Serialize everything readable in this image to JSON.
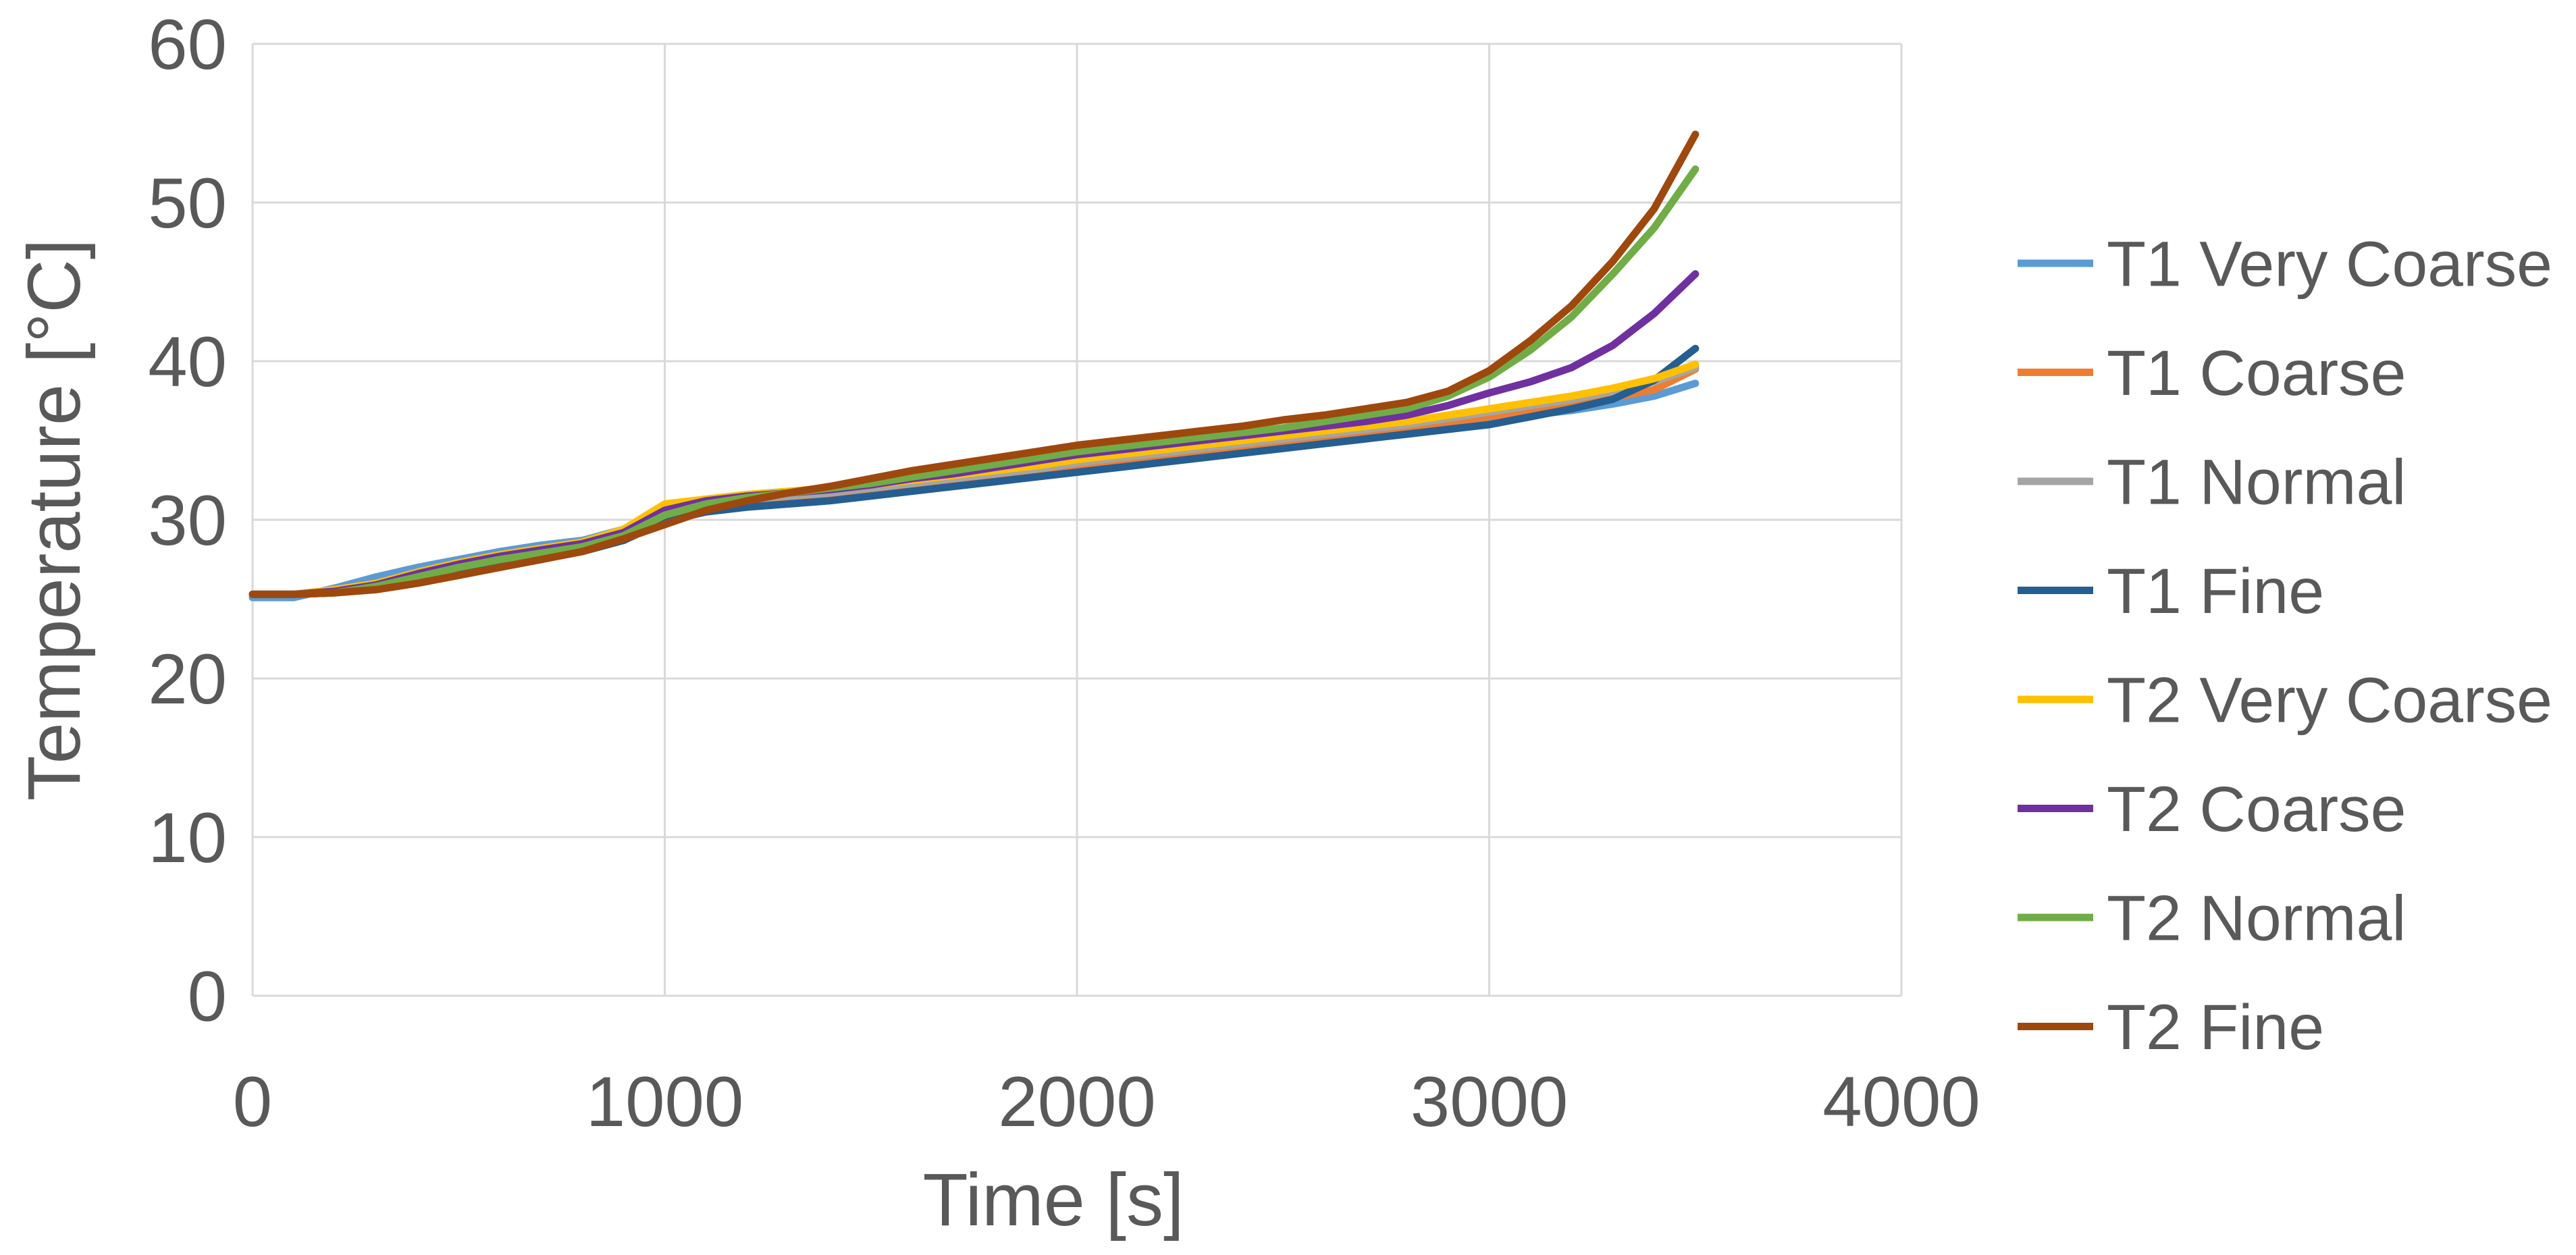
{
  "chart_data": {
    "type": "line",
    "title": "",
    "xlabel": "Time [s]",
    "ylabel": "Temperature [°C]",
    "xlim": [
      0,
      4000
    ],
    "ylim": [
      0,
      60
    ],
    "x_ticks": [
      0,
      1000,
      2000,
      3000,
      4000
    ],
    "y_ticks": [
      0,
      10,
      20,
      30,
      40,
      50,
      60
    ],
    "grid": true,
    "legend_position": "right",
    "x": [
      0,
      100,
      200,
      300,
      400,
      500,
      600,
      700,
      800,
      900,
      1000,
      1100,
      1200,
      1300,
      1400,
      1500,
      1600,
      1700,
      1800,
      1900,
      2000,
      2100,
      2200,
      2300,
      2400,
      2500,
      2600,
      2700,
      2800,
      2900,
      3000,
      3100,
      3200,
      3300,
      3400,
      3500
    ],
    "series": [
      {
        "name": "T1 Very Coarse",
        "color": "#5B9BD5",
        "values": [
          25.1,
          25.1,
          25.7,
          26.4,
          27.0,
          27.5,
          28.0,
          28.4,
          28.7,
          29.4,
          30.7,
          31.1,
          31.4,
          31.6,
          31.8,
          32.0,
          32.2,
          32.5,
          32.8,
          33.1,
          33.4,
          33.7,
          34.0,
          34.3,
          34.5,
          34.8,
          35.1,
          35.4,
          35.7,
          36.0,
          36.3,
          36.6,
          36.9,
          37.3,
          37.8,
          38.6
        ]
      },
      {
        "name": "T1 Coarse",
        "color": "#ED7D31",
        "values": [
          25.3,
          25.3,
          25.4,
          25.8,
          26.4,
          26.9,
          27.4,
          27.8,
          28.2,
          28.9,
          30.2,
          30.8,
          31.1,
          31.3,
          31.5,
          31.8,
          32.1,
          32.4,
          32.7,
          33.0,
          33.3,
          33.6,
          33.9,
          34.2,
          34.5,
          34.8,
          35.1,
          35.4,
          35.8,
          36.1,
          36.5,
          36.9,
          37.3,
          37.7,
          38.2,
          39.5
        ]
      },
      {
        "name": "T1 Normal",
        "color": "#A5A5A5",
        "values": [
          25.3,
          25.3,
          25.5,
          25.9,
          26.5,
          27.0,
          27.5,
          27.9,
          28.3,
          29.0,
          30.4,
          31.0,
          31.3,
          31.5,
          31.7,
          32.0,
          32.3,
          32.6,
          32.9,
          33.2,
          33.6,
          33.9,
          34.2,
          34.5,
          34.8,
          35.1,
          35.4,
          35.7,
          36.0,
          36.4,
          36.8,
          37.2,
          37.6,
          38.1,
          38.7,
          39.6
        ]
      },
      {
        "name": "T1 Fine",
        "color": "#255E91",
        "values": [
          25.3,
          25.3,
          25.4,
          25.7,
          26.2,
          26.7,
          27.2,
          27.6,
          28.0,
          28.7,
          29.9,
          30.5,
          30.8,
          31.0,
          31.2,
          31.5,
          31.8,
          32.1,
          32.4,
          32.7,
          33.0,
          33.3,
          33.6,
          33.9,
          34.2,
          34.5,
          34.8,
          35.1,
          35.4,
          35.7,
          36.0,
          36.5,
          37.0,
          37.6,
          38.8,
          40.8
        ]
      },
      {
        "name": "T2 Very Coarse",
        "color": "#FFC000",
        "values": [
          25.3,
          25.3,
          25.6,
          26.0,
          26.7,
          27.3,
          27.8,
          28.2,
          28.6,
          29.4,
          31.0,
          31.3,
          31.6,
          31.8,
          32.0,
          32.2,
          32.5,
          32.8,
          33.1,
          33.4,
          33.8,
          34.1,
          34.4,
          34.7,
          35.0,
          35.3,
          35.6,
          35.9,
          36.2,
          36.6,
          37.0,
          37.4,
          37.8,
          38.3,
          38.9,
          39.8
        ]
      },
      {
        "name": "T2 Coarse",
        "color": "#7030A0",
        "values": [
          25.3,
          25.3,
          25.5,
          25.9,
          26.6,
          27.2,
          27.7,
          28.1,
          28.5,
          29.2,
          30.6,
          31.2,
          31.5,
          31.7,
          31.9,
          32.2,
          32.6,
          32.9,
          33.3,
          33.7,
          34.1,
          34.4,
          34.7,
          35.0,
          35.3,
          35.6,
          35.9,
          36.2,
          36.6,
          37.2,
          38.0,
          38.7,
          39.6,
          41.0,
          43.0,
          45.5
        ]
      },
      {
        "name": "T2 Normal",
        "color": "#70AD47",
        "values": [
          25.3,
          25.3,
          25.4,
          25.8,
          26.4,
          27.0,
          27.5,
          27.9,
          28.3,
          29.0,
          30.3,
          31.0,
          31.4,
          31.7,
          32.0,
          32.3,
          32.7,
          33.1,
          33.5,
          33.9,
          34.3,
          34.6,
          34.9,
          35.2,
          35.5,
          35.8,
          36.2,
          36.6,
          37.0,
          37.8,
          39.0,
          40.7,
          42.8,
          45.5,
          48.4,
          52.1
        ]
      },
      {
        "name": "T2 Fine",
        "color": "#9E480E",
        "values": [
          25.3,
          25.3,
          25.4,
          25.6,
          26.0,
          26.5,
          27.0,
          27.5,
          28.0,
          28.8,
          29.7,
          30.6,
          31.2,
          31.7,
          32.1,
          32.6,
          33.1,
          33.5,
          33.9,
          34.3,
          34.7,
          35.0,
          35.3,
          35.6,
          35.9,
          36.3,
          36.6,
          37.0,
          37.4,
          38.1,
          39.4,
          41.3,
          43.5,
          46.3,
          49.6,
          54.3
        ]
      }
    ],
    "colors": {
      "grid": "#D9D9D9",
      "axis_text": "#595959",
      "background": "#FFFFFF"
    }
  }
}
